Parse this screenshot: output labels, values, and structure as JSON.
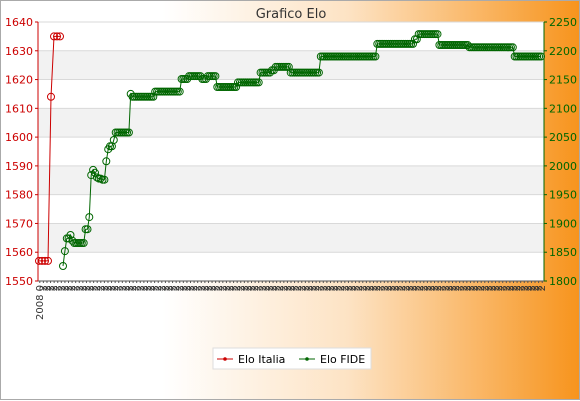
{
  "chart_data": {
    "type": "line",
    "title": "Grafico Elo",
    "ylim_left": [
      1550,
      1640
    ],
    "ylim_right": [
      1800,
      2250
    ],
    "yticks_left": [
      "1550",
      "1560",
      "1570",
      "1580",
      "1590",
      "1600",
      "1610",
      "1620",
      "1630",
      "1640"
    ],
    "yticks_right": [
      "1800",
      "1850",
      "1900",
      "1950",
      "2000",
      "2050",
      "2100",
      "2150",
      "2200",
      "2250"
    ],
    "x_tick_labels": [
      "2008 0",
      "2",
      "2",
      "2",
      "2",
      "2",
      "2",
      "2",
      "2",
      "2",
      "2",
      "2",
      "2",
      "2",
      "2",
      "2",
      "2",
      "2",
      "2",
      "2",
      "2",
      "2",
      "2",
      "2",
      "2",
      "2",
      "2",
      "2",
      "2",
      "2",
      "2",
      "2",
      "2",
      "2",
      "2",
      "2",
      "2",
      "2",
      "2",
      "2",
      "2",
      "2",
      "2",
      "2",
      "2",
      "2",
      "2",
      "2",
      "2",
      "2",
      "2",
      "2",
      "2",
      "2",
      "2",
      "2",
      "2",
      "2",
      "2",
      "2",
      "2",
      "2",
      "2",
      "2",
      "2",
      "2",
      "2",
      "2",
      "2",
      "2",
      "2",
      "2",
      "2",
      "2",
      "2",
      "2",
      "2",
      "2",
      "2",
      "2",
      "2",
      "2",
      "2",
      "2",
      "2",
      "2",
      "2",
      "2",
      "2",
      "2",
      "2",
      "2",
      "2",
      "2",
      "2",
      "2",
      "2",
      "2",
      "2",
      "2",
      "2",
      "2",
      "2",
      "2",
      "2",
      "2",
      "2",
      "2",
      "2",
      "2",
      "2",
      "2",
      "2",
      "2",
      "2",
      "2",
      "2",
      "2",
      "2",
      "2",
      "2",
      "2",
      "2",
      "2",
      "2",
      "2",
      "2",
      "2",
      "2",
      "2",
      "2",
      "2",
      "2",
      "2",
      "2",
      "2",
      "2",
      "2",
      "2",
      "2",
      "2"
    ],
    "grid": true,
    "legend_position": "bottom",
    "series": [
      {
        "name": "Elo Italia",
        "axis": "left",
        "color": "#cc0000",
        "values": [
          1557,
          1557,
          1557,
          1557,
          1614,
          1635,
          1635,
          1635
        ]
      },
      {
        "name": "Elo FIDE",
        "axis": "right",
        "color": "#006600",
        "values": [
          1826,
          1852,
          1874,
          1874,
          1880,
          1870,
          1866,
          1866,
          1866,
          1866,
          1866,
          1866,
          1890,
          1890,
          1911,
          1984,
          1993,
          1988,
          1980,
          1978,
          1978,
          1976,
          1976,
          2008,
          2029,
          2034,
          2034,
          2045,
          2058,
          2058,
          2058,
          2058,
          2058,
          2058,
          2058,
          2058,
          2125,
          2120,
          2120,
          2120,
          2120,
          2120,
          2120,
          2120,
          2120,
          2120,
          2120,
          2120,
          2120,
          2129,
          2129,
          2129,
          2129,
          2129,
          2129,
          2129,
          2129,
          2129,
          2129,
          2129,
          2129,
          2129,
          2129,
          2151,
          2151,
          2151,
          2151,
          2156,
          2156,
          2156,
          2156,
          2156,
          2156,
          2156,
          2151,
          2151,
          2151,
          2156,
          2156,
          2156,
          2156,
          2156,
          2137,
          2137,
          2137,
          2137,
          2137,
          2137,
          2137,
          2137,
          2137,
          2137,
          2137,
          2145,
          2145,
          2145,
          2145,
          2145,
          2145,
          2145,
          2145,
          2145,
          2145,
          2145,
          2145,
          2162,
          2162,
          2162,
          2162,
          2162,
          2162,
          2166,
          2166,
          2172,
          2172,
          2172,
          2172,
          2172,
          2172,
          2172,
          2172,
          2162,
          2162,
          2162,
          2162,
          2162,
          2162,
          2162,
          2162,
          2162,
          2162,
          2162,
          2162,
          2162,
          2162,
          2162,
          2162,
          2190,
          2190,
          2190,
          2190,
          2190,
          2190,
          2190,
          2190,
          2190,
          2190,
          2190,
          2190,
          2190,
          2190,
          2190,
          2190,
          2190,
          2190,
          2190,
          2190,
          2190,
          2190,
          2190,
          2190,
          2190,
          2190,
          2190,
          2190,
          2190,
          2190,
          2212,
          2212,
          2212,
          2212,
          2212,
          2212,
          2212,
          2212,
          2212,
          2212,
          2212,
          2212,
          2212,
          2212,
          2212,
          2212,
          2212,
          2212,
          2212,
          2212,
          2220,
          2220,
          2229,
          2229,
          2229,
          2229,
          2229,
          2229,
          2229,
          2229,
          2229,
          2229,
          2229,
          2210,
          2210,
          2210,
          2210,
          2210,
          2210,
          2210,
          2210,
          2210,
          2210,
          2210,
          2210,
          2210,
          2210,
          2210,
          2210,
          2206,
          2206,
          2206,
          2206,
          2206,
          2206,
          2206,
          2206,
          2206,
          2206,
          2206,
          2206,
          2206,
          2206,
          2206,
          2206,
          2206,
          2206,
          2206,
          2206,
          2206,
          2206,
          2206,
          2206,
          2190,
          2190,
          2190,
          2190,
          2190,
          2190,
          2190,
          2190,
          2190,
          2190,
          2190,
          2190,
          2190,
          2190,
          2190
        ]
      }
    ]
  }
}
